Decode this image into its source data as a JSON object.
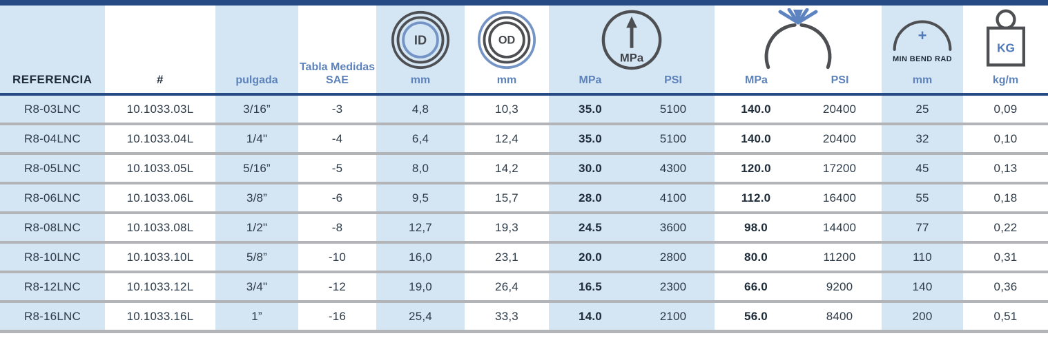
{
  "colors": {
    "navy": "#254a84",
    "light_blue_bg": "#d4e5f4",
    "steel_blue_text": "#5d83ba",
    "icon_dark": "#4d4f52",
    "icon_blue": "#7494c6",
    "row_separator": "#b2b4b7",
    "body_text": "#2d3a47"
  },
  "header": {
    "referencia": "REFERENCIA",
    "numero": "#",
    "pulgada": "pulgada",
    "sae_line1": "Tabla Medidas",
    "sae_line2": "SAE",
    "id_icon_label": "ID",
    "od_icon_label": "OD",
    "gauge_icon_label": "MPa",
    "min_bend_label": "MIN BEND RAD",
    "kg_icon_label": "KG",
    "units": {
      "id": "mm",
      "od": "mm",
      "wp_mpa": "MPa",
      "wp_psi": "PSI",
      "bp_mpa": "MPa",
      "bp_psi": "PSI",
      "bend": "mm",
      "weight": "kg/m"
    }
  },
  "rows": [
    {
      "referencia": "R8-03LNC",
      "codigo": "10.1033.03L",
      "pulgada": "3/16”",
      "sae": "-3",
      "id_mm": "4,8",
      "od_mm": "10,3",
      "wp_mpa": "35.0",
      "wp_psi": "5100",
      "bp_mpa": "140.0",
      "bp_psi": "20400",
      "bend_mm": "25",
      "kg_m": "0,09"
    },
    {
      "referencia": "R8-04LNC",
      "codigo": "10.1033.04L",
      "pulgada": "1/4\"",
      "sae": "-4",
      "id_mm": "6,4",
      "od_mm": "12,4",
      "wp_mpa": "35.0",
      "wp_psi": "5100",
      "bp_mpa": "140.0",
      "bp_psi": "20400",
      "bend_mm": "32",
      "kg_m": "0,10"
    },
    {
      "referencia": "R8-05LNC",
      "codigo": "10.1033.05L",
      "pulgada": "5/16”",
      "sae": "-5",
      "id_mm": "8,0",
      "od_mm": "14,2",
      "wp_mpa": "30.0",
      "wp_psi": "4300",
      "bp_mpa": "120.0",
      "bp_psi": "17200",
      "bend_mm": "45",
      "kg_m": "0,13"
    },
    {
      "referencia": "R8-06LNC",
      "codigo": "10.1033.06L",
      "pulgada": "3/8”",
      "sae": "-6",
      "id_mm": "9,5",
      "od_mm": "15,7",
      "wp_mpa": "28.0",
      "wp_psi": "4100",
      "bp_mpa": "112.0",
      "bp_psi": "16400",
      "bend_mm": "55",
      "kg_m": "0,18"
    },
    {
      "referencia": "R8-08LNC",
      "codigo": "10.1033.08L",
      "pulgada": "1/2\"",
      "sae": "-8",
      "id_mm": "12,7",
      "od_mm": "19,3",
      "wp_mpa": "24.5",
      "wp_psi": "3600",
      "bp_mpa": "98.0",
      "bp_psi": "14400",
      "bend_mm": "77",
      "kg_m": "0,22"
    },
    {
      "referencia": "R8-10LNC",
      "codigo": "10.1033.10L",
      "pulgada": "5/8”",
      "sae": "-10",
      "id_mm": "16,0",
      "od_mm": "23,1",
      "wp_mpa": "20.0",
      "wp_psi": "2800",
      "bp_mpa": "80.0",
      "bp_psi": "11200",
      "bend_mm": "110",
      "kg_m": "0,31"
    },
    {
      "referencia": "R8-12LNC",
      "codigo": "10.1033.12L",
      "pulgada": "3/4\"",
      "sae": "-12",
      "id_mm": "19,0",
      "od_mm": "26,4",
      "wp_mpa": "16.5",
      "wp_psi": "2300",
      "bp_mpa": "66.0",
      "bp_psi": "9200",
      "bend_mm": "140",
      "kg_m": "0,36"
    },
    {
      "referencia": "R8-16LNC",
      "codigo": "10.1033.16L",
      "pulgada": "1”",
      "sae": "-16",
      "id_mm": "25,4",
      "od_mm": "33,3",
      "wp_mpa": "14.0",
      "wp_psi": "2100",
      "bp_mpa": "56.0",
      "bp_psi": "8400",
      "bend_mm": "200",
      "kg_m": "0,51"
    }
  ]
}
